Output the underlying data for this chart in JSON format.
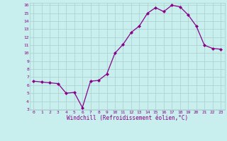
{
  "x": [
    0,
    1,
    2,
    3,
    4,
    5,
    6,
    7,
    8,
    9,
    10,
    11,
    12,
    13,
    14,
    15,
    16,
    17,
    18,
    19,
    20,
    21,
    22,
    23
  ],
  "y": [
    6.5,
    6.4,
    6.3,
    6.2,
    5.0,
    5.1,
    3.2,
    6.5,
    6.6,
    7.4,
    10.0,
    11.1,
    12.6,
    13.4,
    15.0,
    15.7,
    15.2,
    16.0,
    15.8,
    14.8,
    13.4,
    11.0,
    10.6,
    10.5
  ],
  "line_color": "#880088",
  "marker": "D",
  "marker_size": 2.0,
  "bg_color": "#c8eeed",
  "grid_color": "#aacccc",
  "xlabel": "Windchill (Refroidissement éolien,°C)",
  "xlabel_color": "#880088",
  "tick_color": "#880088",
  "ylim": [
    3,
    16
  ],
  "yticks": [
    3,
    4,
    5,
    6,
    7,
    8,
    9,
    10,
    11,
    12,
    13,
    14,
    15,
    16
  ],
  "xticks": [
    0,
    1,
    2,
    3,
    4,
    5,
    6,
    7,
    8,
    9,
    10,
    11,
    12,
    13,
    14,
    15,
    16,
    17,
    18,
    19,
    20,
    21,
    22,
    23
  ],
  "font_family": "monospace"
}
